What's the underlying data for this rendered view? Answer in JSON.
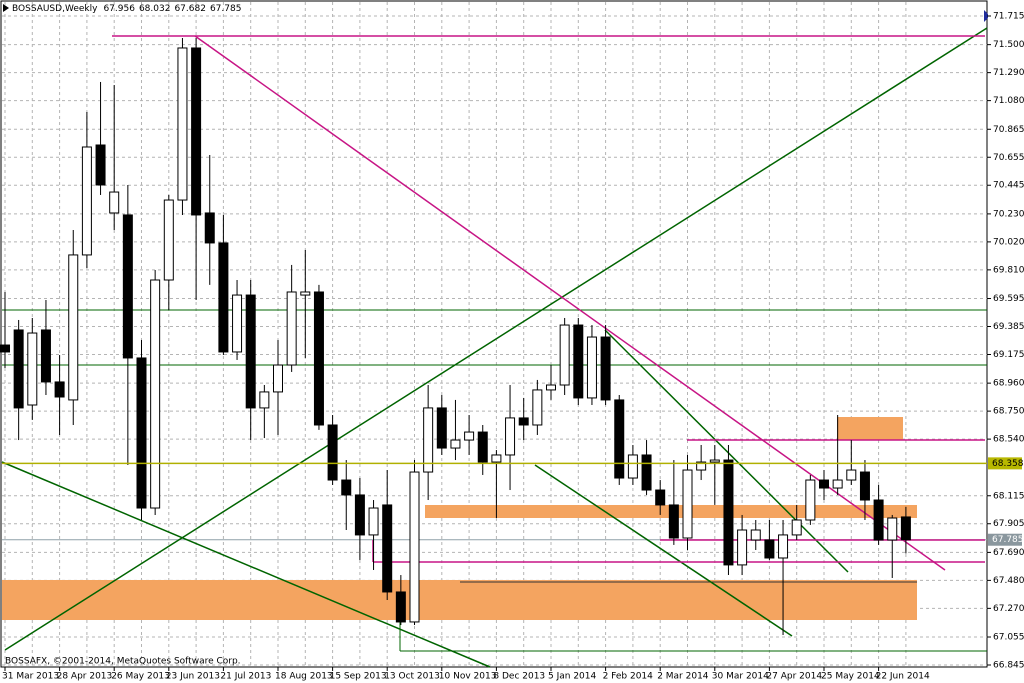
{
  "chart_data": {
    "type": "candlestick",
    "title": "BOSSAUSD,Weekly",
    "annotation": "BOSSAFX, ©2001-2014, MetaQuotes Software Corp.",
    "categories": [
      "31 Mar 2013",
      null,
      null,
      null,
      "28 Apr 2013",
      null,
      null,
      null,
      "26 May 2013",
      null,
      null,
      null,
      "23 Jun 2013",
      null,
      null,
      null,
      "21 Jul 2013",
      null,
      null,
      null,
      "18 Aug 2013",
      null,
      null,
      null,
      "15 Sep 2013",
      null,
      null,
      null,
      "13 Oct 2013",
      null,
      null,
      null,
      "10 Nov 2013",
      null,
      null,
      null,
      "8 Dec 2013",
      null,
      null,
      null,
      "5 Jan 2014",
      null,
      null,
      null,
      "2 Feb 2014",
      null,
      null,
      null,
      "2 Mar 2014",
      null,
      null,
      null,
      "30 Mar 2014",
      null,
      null,
      null,
      "27 Apr 2014",
      null,
      null,
      null,
      "25 May 2014",
      null,
      null,
      null,
      "22 Jun 2014",
      null,
      null
    ],
    "open": [
      69.246,
      69.359,
      68.796,
      69.359,
      68.969,
      68.834,
      69.922,
      70.747,
      70.237,
      70.222,
      69.149,
      68.023,
      69.734,
      70.334,
      71.475,
      70.237,
      70.012,
      69.194,
      69.621,
      68.774,
      68.894,
      69.096,
      69.621,
      69.644,
      68.646,
      68.233,
      68.121,
      67.821,
      68.046,
      67.393,
      67.168,
      68.293,
      68.774,
      68.473,
      68.533,
      68.593,
      68.368,
      68.421,
      68.699,
      68.646,
      68.909,
      68.946,
      69.396,
      68.849,
      69.306,
      68.834,
      68.248,
      68.421,
      68.158,
      68.046,
      67.798,
      68.308,
      68.368,
      68.383,
      67.596,
      67.783,
      67.783,
      67.648,
      67.821,
      67.933,
      68.233,
      68.173,
      68.233,
      68.293,
      68.083,
      67.783,
      67.956
    ],
    "high": [
      69.644,
      69.434,
      69.449,
      69.584,
      69.171,
      70.109,
      70.995,
      71.22,
      71.197,
      70.447,
      69.284,
      69.809,
      70.372,
      71.55,
      71.55,
      70.672,
      70.222,
      69.734,
      69.734,
      68.946,
      69.284,
      69.847,
      69.959,
      69.697,
      68.721,
      68.383,
      68.248,
      68.083,
      68.308,
      67.52,
      68.383,
      68.946,
      68.871,
      68.834,
      68.721,
      68.646,
      68.458,
      68.946,
      68.849,
      68.984,
      69.096,
      69.449,
      69.449,
      69.396,
      69.396,
      68.871,
      68.496,
      68.533,
      68.233,
      68.383,
      68.421,
      68.496,
      68.496,
      68.496,
      67.971,
      67.933,
      67.933,
      67.933,
      68.046,
      68.271,
      68.308,
      68.721,
      68.533,
      68.383,
      68.196,
      67.971,
      68.032
    ],
    "low": [
      69.074,
      68.533,
      68.684,
      68.871,
      68.571,
      68.646,
      69.824,
      70.372,
      70.109,
      68.346,
      67.933,
      67.971,
      69.509,
      70.222,
      69.584,
      69.697,
      69.171,
      69.134,
      68.533,
      68.548,
      68.571,
      69.044,
      69.149,
      68.609,
      68.196,
      67.858,
      67.633,
      67.558,
      67.333,
      67.145,
      67.145,
      68.083,
      68.421,
      68.383,
      68.421,
      68.271,
      67.948,
      68.158,
      68.533,
      68.571,
      68.834,
      68.871,
      68.796,
      68.796,
      68.796,
      68.196,
      68.196,
      68.121,
      67.971,
      67.746,
      67.708,
      68.233,
      68.046,
      67.52,
      67.52,
      67.708,
      67.633,
      67.07,
      67.783,
      67.896,
      68.083,
      68.121,
      68.196,
      67.933,
      67.746,
      67.498,
      67.682
    ],
    "close": [
      69.194,
      68.774,
      69.336,
      68.969,
      68.856,
      69.922,
      70.732,
      70.447,
      70.394,
      69.149,
      68.023,
      69.734,
      70.334,
      71.475,
      70.222,
      70.012,
      69.194,
      69.621,
      68.774,
      68.894,
      69.096,
      69.644,
      69.644,
      68.646,
      68.233,
      68.121,
      67.821,
      68.023,
      67.393,
      67.168,
      68.293,
      68.774,
      68.473,
      68.533,
      68.593,
      68.368,
      68.421,
      68.699,
      68.646,
      68.909,
      68.946,
      69.396,
      68.849,
      69.306,
      68.834,
      68.248,
      68.421,
      68.158,
      68.046,
      67.798,
      68.308,
      68.368,
      68.383,
      67.596,
      67.858,
      67.858,
      67.648,
      67.821,
      67.933,
      68.233,
      68.173,
      68.233,
      68.308,
      68.083,
      67.783,
      67.948,
      67.785
    ],
    "ylim": [
      66.845,
      71.835
    ],
    "yticks": [
      71.715,
      {
        "value": 71.5,
        "label": "71.500"
      },
      {
        "value": 71.29,
        "label": "71.290"
      },
      {
        "value": 71.08,
        "label": "71.080"
      },
      70.865,
      70.655,
      70.445,
      {
        "value": 70.23,
        "label": "70.230"
      },
      {
        "value": 70.02,
        "label": "70.020"
      },
      {
        "value": 69.81,
        "label": "69.810"
      },
      69.595,
      69.385,
      69.175,
      {
        "value": 68.96,
        "label": "68.960"
      },
      {
        "value": 68.75,
        "label": "68.750"
      },
      {
        "value": 68.54,
        "label": "68.540"
      },
      68.115,
      67.905,
      {
        "value": 67.69,
        "label": "67.690"
      },
      {
        "value": 67.48,
        "label": "67.480"
      },
      {
        "value": 67.27,
        "label": "67.270"
      },
      67.055,
      66.845
    ],
    "level": 68.358,
    "grid": true,
    "bull_color": "#ffffff",
    "bear_color": "#000000"
  }
}
